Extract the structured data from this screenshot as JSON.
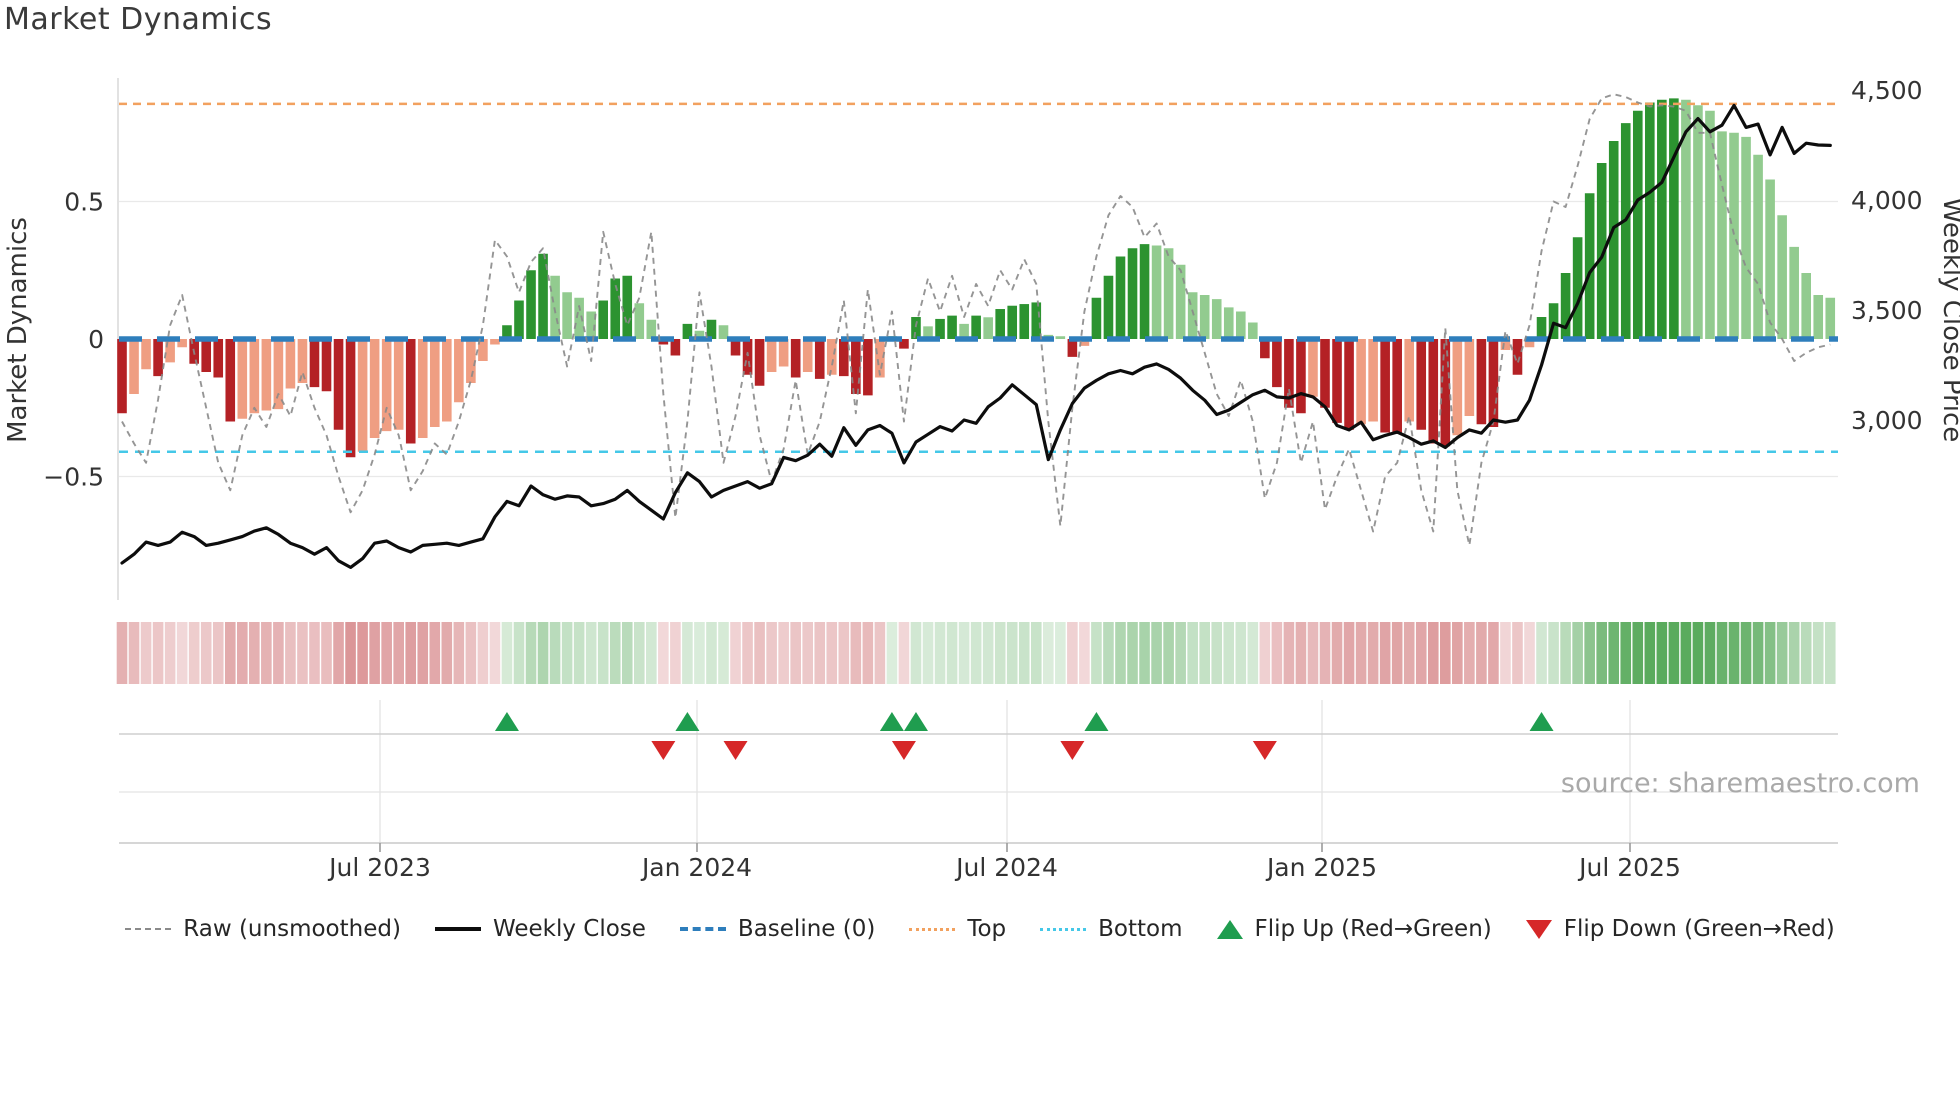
{
  "title": "Market Dynamics",
  "source_credit": "source: sharemaestro.com",
  "left_axis": {
    "label": "Market Dynamics",
    "ticks": [
      "0.5",
      "0",
      "−0.5"
    ]
  },
  "right_axis": {
    "label": "Weekly Close Price",
    "ticks": [
      "4,500",
      "4,000",
      "3,500",
      "3,000"
    ]
  },
  "x_axis": {
    "ticks": [
      "Jul 2023",
      "Jan 2024",
      "Jul 2024",
      "Jan 2025",
      "Jul 2025"
    ]
  },
  "legend": {
    "raw": "Raw (unsmoothed)",
    "weekly_close": "Weekly Close",
    "baseline": "Baseline (0)",
    "top": "Top",
    "bottom": "Bottom",
    "flip_up": "Flip Up (Red→Green)",
    "flip_down": "Flip Down (Green→Red)"
  },
  "colors": {
    "bar_pos_strong": "#2c9330",
    "bar_pos_weak": "#92cb8f",
    "bar_neg_strong": "#b42125",
    "bar_neg_weak": "#ef9e82",
    "baseline": "#2e7ebc",
    "top_line": "#f2a15f",
    "bottom_line": "#45c8e8",
    "raw_line": "#8a8a8a",
    "close_line": "#0d0d0d",
    "flip_up": "#1f9d4f",
    "flip_down": "#d62728"
  },
  "chart_data": {
    "type": "combo (bar oscillator + lines + heatmap + flip markers)",
    "title": "Market Dynamics",
    "ylabel_left": "Market Dynamics",
    "ylabel_right": "Weekly Close Price",
    "x_range": "Feb 2023 – Oct 2025, weekly",
    "ylim_left": [
      -0.8,
      1.0
    ],
    "ylim_right": [
      2300,
      4600
    ],
    "baseline": 0,
    "top_level": 0.855,
    "bottom_level": -0.41,
    "oscillator": [
      -0.27,
      -0.2,
      -0.11,
      -0.135,
      -0.085,
      -0.03,
      -0.09,
      -0.12,
      -0.14,
      -0.3,
      -0.29,
      -0.27,
      -0.26,
      -0.255,
      -0.18,
      -0.16,
      -0.175,
      -0.19,
      -0.33,
      -0.43,
      -0.41,
      -0.36,
      -0.335,
      -0.33,
      -0.38,
      -0.36,
      -0.32,
      -0.3,
      -0.23,
      -0.16,
      -0.08,
      -0.02,
      0.05,
      0.14,
      0.25,
      0.31,
      0.23,
      0.17,
      0.15,
      0.1,
      0.14,
      0.22,
      0.23,
      0.13,
      0.07,
      -0.02,
      -0.06,
      0.055,
      0.03,
      0.07,
      0.05,
      -0.06,
      -0.13,
      -0.17,
      -0.12,
      -0.1,
      -0.14,
      -0.12,
      -0.145,
      -0.13,
      -0.135,
      -0.2,
      -0.205,
      -0.14,
      0.01,
      -0.035,
      0.08,
      0.046,
      0.073,
      0.085,
      0.055,
      0.085,
      0.079,
      0.109,
      0.121,
      0.127,
      0.133,
      0.015,
      0.01,
      -0.065,
      -0.025,
      0.15,
      0.23,
      0.3,
      0.33,
      0.345,
      0.34,
      0.33,
      0.27,
      0.17,
      0.16,
      0.145,
      0.115,
      0.1,
      0.06,
      -0.07,
      -0.175,
      -0.25,
      -0.27,
      -0.21,
      -0.25,
      -0.305,
      -0.33,
      -0.31,
      -0.3,
      -0.34,
      -0.345,
      -0.3,
      -0.33,
      -0.38,
      -0.39,
      -0.35,
      -0.28,
      -0.31,
      -0.32,
      -0.04,
      -0.13,
      -0.03,
      0.08,
      0.13,
      0.24,
      0.37,
      0.53,
      0.64,
      0.72,
      0.785,
      0.83,
      0.86,
      0.87,
      0.875,
      0.87,
      0.85,
      0.83,
      0.755,
      0.75,
      0.735,
      0.67,
      0.58,
      0.45,
      0.335,
      0.24,
      0.16,
      0.15
    ],
    "raw": [
      -0.3,
      -0.38,
      -0.45,
      -0.22,
      0.05,
      0.16,
      -0.05,
      -0.25,
      -0.45,
      -0.55,
      -0.35,
      -0.25,
      -0.32,
      -0.2,
      -0.28,
      -0.12,
      -0.25,
      -0.35,
      -0.5,
      -0.63,
      -0.55,
      -0.42,
      -0.25,
      -0.35,
      -0.55,
      -0.48,
      -0.38,
      -0.42,
      -0.3,
      -0.15,
      0.05,
      0.36,
      0.3,
      0.17,
      0.28,
      0.33,
      0.1,
      -0.1,
      0.12,
      -0.08,
      0.39,
      0.2,
      0.05,
      0.15,
      0.39,
      -0.2,
      -0.65,
      -0.3,
      0.17,
      -0.1,
      -0.45,
      -0.28,
      -0.05,
      -0.35,
      -0.52,
      -0.4,
      -0.15,
      -0.42,
      -0.3,
      -0.1,
      0.14,
      -0.27,
      0.18,
      -0.13,
      0.1,
      -0.3,
      0.05,
      0.22,
      0.1,
      0.23,
      0.08,
      0.2,
      0.12,
      0.25,
      0.18,
      0.29,
      0.2,
      -0.3,
      -0.68,
      -0.25,
      0.1,
      0.3,
      0.45,
      0.52,
      0.48,
      0.37,
      0.42,
      0.3,
      0.25,
      0.1,
      -0.05,
      -0.2,
      -0.28,
      -0.15,
      -0.3,
      -0.58,
      -0.45,
      -0.18,
      -0.45,
      -0.3,
      -0.62,
      -0.5,
      -0.4,
      -0.55,
      -0.7,
      -0.5,
      -0.45,
      -0.28,
      -0.55,
      -0.7,
      0.04,
      -0.55,
      -0.75,
      -0.45,
      -0.3,
      0.03,
      -0.09,
      0.05,
      0.32,
      0.5,
      0.48,
      0.63,
      0.8,
      0.875,
      0.89,
      0.88,
      0.86,
      0.845,
      0.85,
      0.845,
      0.83,
      0.75,
      0.75,
      0.56,
      0.38,
      0.26,
      0.2,
      0.06,
      0.0,
      -0.08,
      -0.05,
      -0.03,
      -0.02
    ],
    "weekly_close": [
      2350,
      2390,
      2445,
      2430,
      2445,
      2490,
      2470,
      2430,
      2440,
      2455,
      2470,
      2495,
      2510,
      2480,
      2440,
      2420,
      2390,
      2420,
      2360,
      2330,
      2370,
      2440,
      2450,
      2420,
      2400,
      2430,
      2435,
      2440,
      2430,
      2445,
      2460,
      2560,
      2630,
      2610,
      2700,
      2660,
      2640,
      2655,
      2650,
      2610,
      2620,
      2640,
      2680,
      2630,
      2590,
      2550,
      2670,
      2760,
      2720,
      2650,
      2680,
      2700,
      2720,
      2690,
      2710,
      2830,
      2815,
      2840,
      2890,
      2835,
      2965,
      2885,
      2955,
      2975,
      2940,
      2805,
      2900,
      2935,
      2970,
      2950,
      3000,
      2985,
      3060,
      3100,
      3160,
      3115,
      3070,
      2820,
      2955,
      3075,
      3145,
      3180,
      3210,
      3225,
      3210,
      3240,
      3255,
      3230,
      3190,
      3135,
      3090,
      3025,
      3045,
      3080,
      3115,
      3135,
      3105,
      3100,
      3120,
      3105,
      3060,
      2975,
      2955,
      2990,
      2910,
      2930,
      2945,
      2920,
      2890,
      2905,
      2875,
      2920,
      2955,
      2940,
      3000,
      2990,
      3000,
      3090,
      3250,
      3440,
      3420,
      3530,
      3670,
      3740,
      3875,
      3910,
      4000,
      4035,
      4080,
      4195,
      4310,
      4370,
      4310,
      4340,
      4430,
      4330,
      4345,
      4205,
      4330,
      4212,
      4258,
      4250,
      4248
    ],
    "flip_up_weeks": [
      32,
      47,
      64,
      66,
      81,
      118
    ],
    "flip_down_weeks": [
      45,
      51,
      65,
      79,
      95
    ],
    "legend_position": "bottom",
    "grid": "horizontal at ±0.5 (= 4,000 on right axis), light"
  }
}
